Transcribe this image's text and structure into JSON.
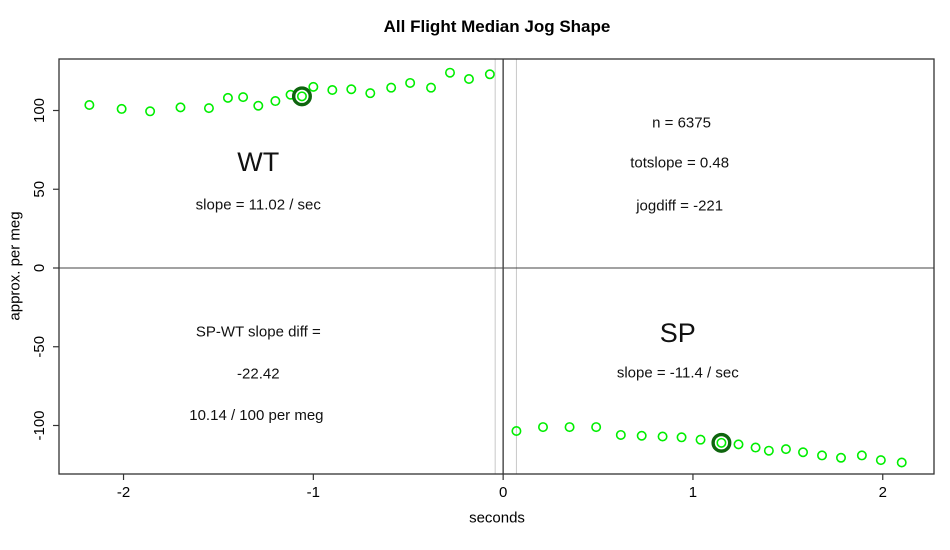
{
  "title": "All Flight Median Jog Shape",
  "chart_data": {
    "type": "scatter",
    "title": "All Flight Median Jog Shape",
    "xlabel": "seconds",
    "ylabel": "approx. per meg",
    "xlim": [
      -2.34,
      2.27
    ],
    "ylim": [
      -130.8,
      132.7
    ],
    "x_ticks": [
      -2,
      -1,
      0,
      1,
      2
    ],
    "y_ticks": [
      -100,
      -50,
      0,
      50,
      100
    ],
    "grid": false,
    "legend": "none",
    "point_color": "#00ee00",
    "highlight_color": "#0e650e",
    "axis_color": "#333333",
    "ref_line_color": "#454545",
    "guide_line_color": "#c8c8c8",
    "series": [
      {
        "name": "WT",
        "points": [
          [
            -2.18,
            103.5
          ],
          [
            -2.01,
            101
          ],
          [
            -1.86,
            99.5
          ],
          [
            -1.7,
            102
          ],
          [
            -1.55,
            101.5
          ],
          [
            -1.45,
            108
          ],
          [
            -1.37,
            108.5
          ],
          [
            -1.29,
            103
          ],
          [
            -1.2,
            106
          ],
          [
            -1.12,
            110
          ],
          [
            -1.06,
            109
          ],
          [
            -1.0,
            115
          ],
          [
            -0.9,
            113
          ],
          [
            -0.8,
            113.5
          ],
          [
            -0.7,
            111
          ],
          [
            -0.59,
            114.5
          ],
          [
            -0.49,
            117.5
          ],
          [
            -0.38,
            114.5
          ],
          [
            -0.28,
            124
          ],
          [
            -0.18,
            120
          ],
          [
            -0.07,
            123
          ]
        ]
      },
      {
        "name": "SP",
        "points": [
          [
            0.07,
            -103.5
          ],
          [
            0.21,
            -101
          ],
          [
            0.35,
            -101
          ],
          [
            0.49,
            -101
          ],
          [
            0.62,
            -106
          ],
          [
            0.73,
            -106.5
          ],
          [
            0.84,
            -107
          ],
          [
            0.94,
            -107.5
          ],
          [
            1.04,
            -109
          ],
          [
            1.15,
            -111
          ],
          [
            1.24,
            -112
          ],
          [
            1.33,
            -114
          ],
          [
            1.4,
            -116
          ],
          [
            1.49,
            -115
          ],
          [
            1.58,
            -117
          ],
          [
            1.68,
            -119
          ],
          [
            1.78,
            -120.5
          ],
          [
            1.89,
            -119
          ],
          [
            1.99,
            -122
          ],
          [
            2.1,
            -123.5
          ]
        ]
      }
    ],
    "highlighted_points": [
      {
        "series": "WT",
        "x": -1.06,
        "y": 109
      },
      {
        "series": "SP",
        "x": 1.15,
        "y": -111
      }
    ],
    "hlines": [
      {
        "y": 0,
        "color": "#454545",
        "width": 1
      }
    ],
    "vlines": [
      {
        "x": -0.042,
        "color": "#c8c8c8",
        "width": 1
      },
      {
        "x": 0,
        "color": "#454545",
        "width": 1.4
      },
      {
        "x": 0.07,
        "color": "#c8c8c8",
        "width": 1
      }
    ],
    "annotations": [
      {
        "name": "wt-label",
        "text": "WT",
        "x": -1.29,
        "y": 67.3,
        "size": "large"
      },
      {
        "name": "wt-slope",
        "text": "slope = 11.02 / sec",
        "x": -1.29,
        "y": 40.0,
        "size": "normal"
      },
      {
        "name": "n-count",
        "text": "n = 6375",
        "x": 0.94,
        "y": 92.1,
        "size": "normal"
      },
      {
        "name": "totslope",
        "text": "totslope = 0.48",
        "x": 0.93,
        "y": 66.7,
        "size": "normal"
      },
      {
        "name": "jogdiff",
        "text": "jogdiff = -221",
        "x": 0.93,
        "y": 39.4,
        "size": "normal"
      },
      {
        "name": "spwt-diff-label",
        "text": "SP-WT slope diff =",
        "x": -1.29,
        "y": -40.6,
        "size": "normal"
      },
      {
        "name": "spwt-diff-value",
        "text": "-22.42",
        "x": -1.29,
        "y": -67.3,
        "size": "normal"
      },
      {
        "name": "spwt-diff-rate",
        "text": "10.14 / 100 per meg",
        "x": -1.3,
        "y": -93.5,
        "size": "normal"
      },
      {
        "name": "sp-label",
        "text": "SP",
        "x": 0.92,
        "y": -41.3,
        "size": "large"
      },
      {
        "name": "sp-slope",
        "text": "slope = -11.4 / sec",
        "x": 0.92,
        "y": -66.7,
        "size": "normal"
      }
    ]
  }
}
